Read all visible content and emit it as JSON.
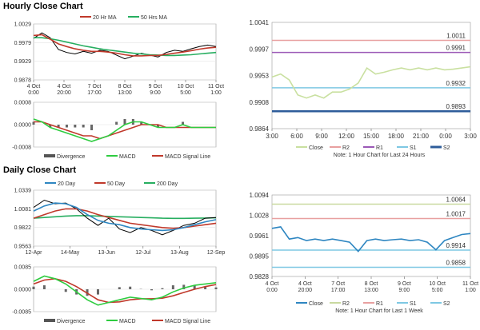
{
  "sections": {
    "hourly_title": "Hourly Close Chart",
    "daily_title": "Daily Close Chart"
  },
  "colors": {
    "ma_short": "#c0392b",
    "ma_long": "#27ae60",
    "price": "#000000",
    "macd": "#2ecc40",
    "signal": "#c0392b",
    "divergence": "#666666",
    "r1": "#e8a0a0",
    "r2_hourly": "#e8a0a0",
    "r2_daily": "#c9d9a0",
    "r1_hourly": "#9b59b6",
    "s1": "#7ec8e3",
    "s2": "#2e5c9a",
    "close_hourly": "#c9e0a0",
    "close_daily": "#2e86c1"
  },
  "chart_data": [
    {
      "id": "hourly_price",
      "type": "line",
      "legend": [
        "20 Hr MA",
        "50 Hrs MA"
      ],
      "y_ticks": [
        "1.0029",
        "0.9979",
        "0.9929",
        "0.9878"
      ],
      "x_ticks": [
        "4 Oct\n0:00",
        "4 Oct\n20:00",
        "7 Oct\n17:00",
        "8 Oct\n13:00",
        "9 Oct\n9:00",
        "10 Oct\n5:00",
        "11 Oct\n1:00"
      ],
      "ylim": [
        0.9878,
        1.0029
      ],
      "close": [
        0.999,
        1.0005,
        0.9992,
        0.996,
        0.9952,
        0.9948,
        0.9955,
        0.995,
        0.9958,
        0.9955,
        0.9945,
        0.9935,
        0.9942,
        0.995,
        0.9945,
        0.994,
        0.9952,
        0.9958,
        0.9955,
        0.9962,
        0.9968,
        0.9972,
        0.9968
      ],
      "ma20": [
        0.9998,
        1.0,
        0.9988,
        0.9975,
        0.9968,
        0.9962,
        0.9958,
        0.9955,
        0.9955,
        0.9953,
        0.995,
        0.9946,
        0.9943,
        0.9943,
        0.9944,
        0.9944,
        0.9947,
        0.995,
        0.9953,
        0.9957,
        0.9961,
        0.9964,
        0.9966
      ],
      "ma50": [
        0.9992,
        0.9992,
        0.9989,
        0.9985,
        0.998,
        0.9975,
        0.997,
        0.9966,
        0.9962,
        0.9959,
        0.9956,
        0.9953,
        0.995,
        0.9948,
        0.9946,
        0.9945,
        0.9944,
        0.9944,
        0.9945,
        0.9946,
        0.9948,
        0.995,
        0.9952
      ]
    },
    {
      "id": "hourly_macd",
      "type": "line",
      "y_ticks": [
        "0.0008",
        "0.0000",
        "-0.0008"
      ],
      "ylim": [
        -0.0008,
        0.0008
      ],
      "legend": [
        "Divergence",
        "MACD",
        "MACD Signal Line"
      ],
      "macd": [
        0.0002,
        0.0001,
        -0.0001,
        -0.0002,
        -0.0003,
        -0.0004,
        -0.0005,
        -0.0006,
        -0.0005,
        -0.0004,
        -0.0002,
        0.0,
        0.0001,
        0.0001,
        0.0,
        -0.0001,
        -0.0001,
        -0.0001,
        0.0,
        -0.0001,
        -0.0001,
        -0.0001,
        -0.0001
      ],
      "signal": [
        0.0001,
        0.0001,
        0.0,
        -0.0001,
        -0.0002,
        -0.0003,
        -0.0004,
        -0.0004,
        -0.0005,
        -0.0004,
        -0.0003,
        -0.0002,
        -0.0001,
        0.0,
        0.0,
        0.0,
        -0.0001,
        -0.0001,
        -0.0001,
        -0.0001,
        -0.0001,
        -0.0001,
        -0.0001
      ],
      "divergence": [
        0.0001,
        0.0,
        -0.0001,
        -0.0001,
        -0.0001,
        -0.0001,
        -0.0001,
        -0.0002,
        0.0,
        0.0,
        0.0001,
        0.0002,
        0.0002,
        0.0001,
        0.0,
        -0.0001,
        0.0,
        0.0,
        0.0001,
        0.0,
        0.0,
        0.0,
        0.0
      ]
    },
    {
      "id": "hourly_pivot",
      "type": "line",
      "y_ticks": [
        "1.0041",
        "0.9997",
        "0.9953",
        "0.9908",
        "0.9864"
      ],
      "ylim": [
        0.9864,
        1.0041
      ],
      "x_ticks": [
        "3:00",
        "6:00",
        "9:00",
        "12:00",
        "15:00",
        "18:00",
        "21:00",
        "0:00",
        "3:00"
      ],
      "levels": [
        {
          "name": "R2",
          "value": 1.0011,
          "label": "1.0011"
        },
        {
          "name": "R1",
          "value": 0.9991,
          "label": "0.9991"
        },
        {
          "name": "S1",
          "value": 0.9932,
          "label": "0.9932"
        },
        {
          "name": "S2",
          "value": 0.9893,
          "label": "0.9893"
        }
      ],
      "close": [
        0.995,
        0.9955,
        0.9945,
        0.992,
        0.9915,
        0.992,
        0.9915,
        0.9925,
        0.9925,
        0.993,
        0.994,
        0.9965,
        0.9955,
        0.9958,
        0.9962,
        0.9965,
        0.9962,
        0.9965,
        0.9962,
        0.9965,
        0.9962,
        0.9963,
        0.9965,
        0.9967
      ],
      "legend": [
        "Close",
        "R2",
        "R1",
        "S1",
        "S2"
      ],
      "note": "Note: 1 Hour Chart for Last 24 Hours"
    },
    {
      "id": "daily_price",
      "type": "line",
      "legend": [
        "20 Day",
        "50 Day",
        "200 Day"
      ],
      "y_ticks": [
        "1.0339",
        "1.0081",
        "0.9822",
        "0.9563"
      ],
      "ylim": [
        0.9563,
        1.0339
      ],
      "x_ticks": [
        "12-Apr",
        "14-May",
        "13-Jun",
        "12-Jul",
        "13-Aug",
        "12-Sep"
      ],
      "close": [
        1.01,
        1.02,
        1.015,
        1.016,
        1.008,
        0.995,
        0.985,
        0.995,
        0.98,
        0.975,
        0.982,
        0.978,
        0.972,
        0.978,
        0.985,
        0.988,
        0.995,
        0.996
      ],
      "ma20": [
        1.005,
        1.012,
        1.016,
        1.015,
        1.01,
        1.0,
        0.992,
        0.988,
        0.986,
        0.982,
        0.98,
        0.979,
        0.978,
        0.979,
        0.982,
        0.986,
        0.99,
        0.993
      ],
      "ma50": [
        0.995,
        1.0,
        1.005,
        1.008,
        1.008,
        1.005,
        1.0,
        0.996,
        0.992,
        0.988,
        0.986,
        0.984,
        0.982,
        0.981,
        0.982,
        0.984,
        0.986,
        0.988
      ],
      "ma200": [
        0.995,
        0.996,
        0.997,
        0.998,
        0.9985,
        0.9985,
        0.998,
        0.9975,
        0.997,
        0.9965,
        0.996,
        0.9955,
        0.995,
        0.9948,
        0.9948,
        0.995,
        0.9952,
        0.9955
      ]
    },
    {
      "id": "daily_macd",
      "type": "line",
      "y_ticks": [
        "0.0085",
        "0.0000",
        "-0.0085"
      ],
      "ylim": [
        -0.0085,
        0.0085
      ],
      "legend": [
        "Divergence",
        "MACD",
        "MACD Signal Line"
      ],
      "macd": [
        0.003,
        0.005,
        0.004,
        0.002,
        -0.001,
        -0.004,
        -0.006,
        -0.005,
        -0.004,
        -0.003,
        -0.0035,
        -0.004,
        -0.003,
        -0.001,
        0.0005,
        0.0015,
        0.002,
        0.0025
      ],
      "signal": [
        0.002,
        0.0035,
        0.004,
        0.003,
        0.001,
        -0.0015,
        -0.004,
        -0.005,
        -0.0048,
        -0.004,
        -0.0036,
        -0.0036,
        -0.0034,
        -0.0025,
        -0.0012,
        0.0,
        0.001,
        0.0018
      ],
      "divergence": [
        0.001,
        0.0015,
        0.0,
        -0.001,
        -0.002,
        -0.0025,
        -0.002,
        0.0,
        0.0008,
        0.001,
        0.0001,
        -0.0004,
        0.0004,
        0.0015,
        0.0017,
        0.0015,
        0.001,
        0.0007
      ]
    },
    {
      "id": "daily_pivot",
      "type": "line",
      "y_ticks": [
        "1.0094",
        "1.0028",
        "0.9961",
        "0.9895",
        "0.9828"
      ],
      "ylim": [
        0.9828,
        1.0094
      ],
      "x_ticks": [
        "4 Oct\n0:00",
        "4 Oct\n20:00",
        "7 Oct\n17:00",
        "8 Oct\n13:00",
        "9 Oct\n9:00",
        "10 Oct\n5:00",
        "11 Oct\n1:00"
      ],
      "levels": [
        {
          "name": "R2",
          "value": 1.0064,
          "label": "1.0064"
        },
        {
          "name": "R1",
          "value": 1.0017,
          "label": "1.0017"
        },
        {
          "name": "S1",
          "value": 0.9914,
          "label": "0.9914"
        },
        {
          "name": "S2",
          "value": 0.9858,
          "label": "0.9858"
        }
      ],
      "close": [
        0.9985,
        0.999,
        0.995,
        0.9955,
        0.9945,
        0.995,
        0.9945,
        0.995,
        0.9945,
        0.994,
        0.991,
        0.9945,
        0.995,
        0.9945,
        0.9948,
        0.995,
        0.9945,
        0.9948,
        0.994,
        0.9915,
        0.9945,
        0.9955,
        0.9965,
        0.9968
      ],
      "legend": [
        "Close",
        "R2",
        "R1",
        "S1",
        "S2"
      ],
      "note": "Note: 1 Hour Chart for Last 1 Week"
    }
  ]
}
